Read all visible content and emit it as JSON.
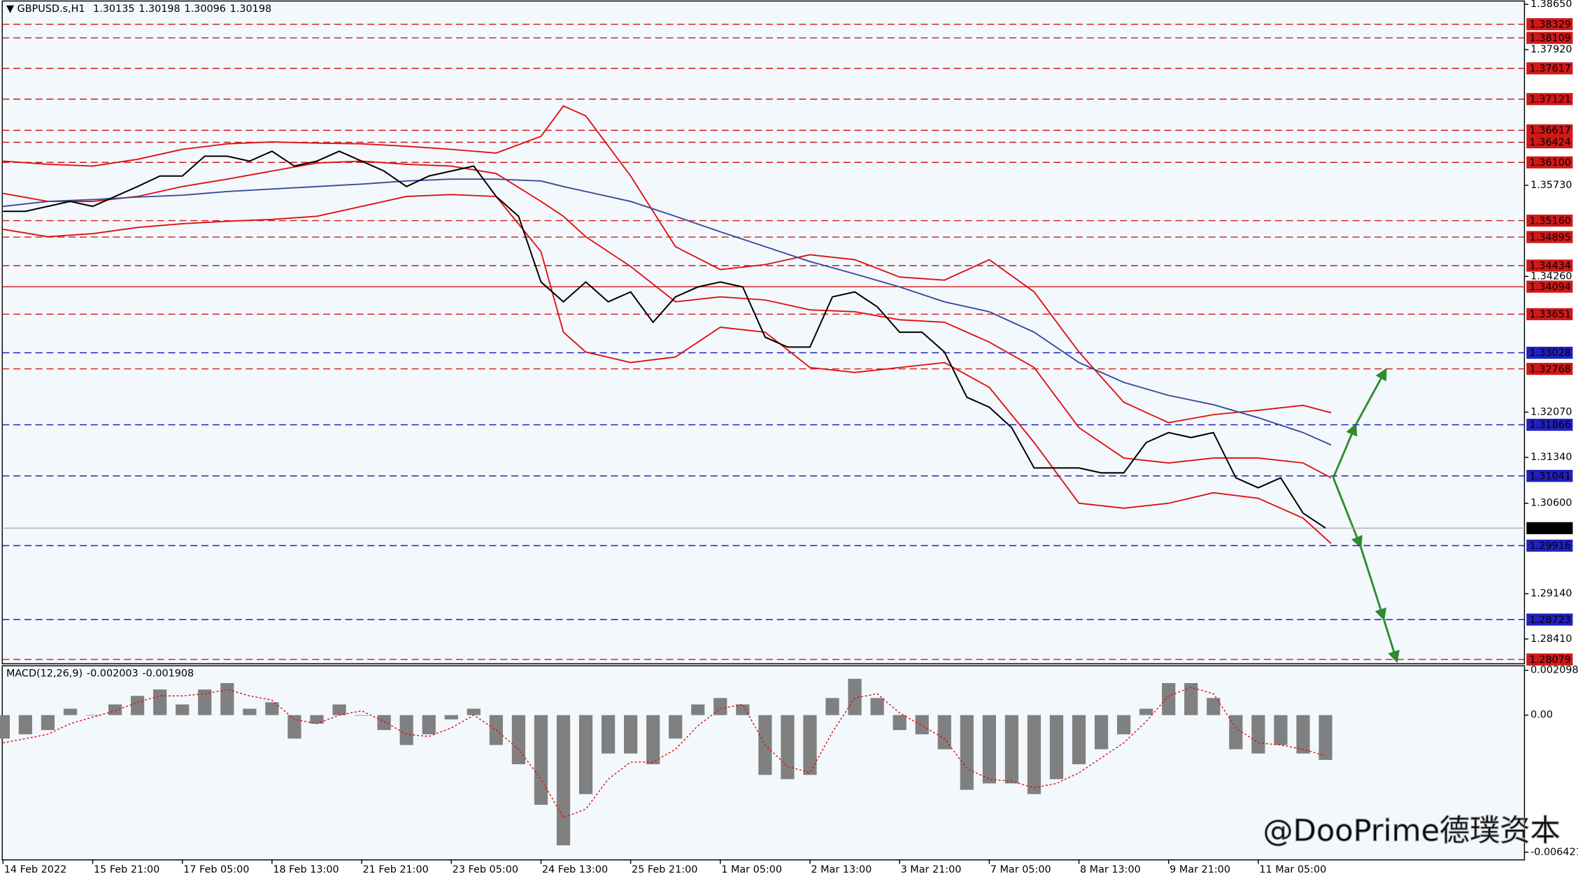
{
  "chart_data": {
    "type": "line",
    "title": "GBPUSD.s,H1",
    "quote": [
      1.30135,
      1.30198,
      1.30096,
      1.30198
    ],
    "xlim": [
      -1,
      543
    ],
    "xticks": [
      {
        "value": 0,
        "label": "14 Feb 2022"
      },
      {
        "value": 32,
        "label": "15 Feb 21:00"
      },
      {
        "value": 64,
        "label": "17 Feb 05:00"
      },
      {
        "value": 96,
        "label": "18 Feb 13:00"
      },
      {
        "value": 128,
        "label": "21 Feb 21:00"
      },
      {
        "value": 160,
        "label": "23 Feb 05:00"
      },
      {
        "value": 192,
        "label": "24 Feb 13:00"
      },
      {
        "value": 224,
        "label": "25 Feb 21:00"
      },
      {
        "value": 256,
        "label": "1 Mar 05:00"
      },
      {
        "value": 288,
        "label": "2 Mar 13:00"
      },
      {
        "value": 320,
        "label": "3 Mar 21:00"
      },
      {
        "value": 352,
        "label": "7 Mar 05:00"
      },
      {
        "value": 384,
        "label": "8 Mar 13:00"
      },
      {
        "value": 416,
        "label": "9 Mar 21:00"
      },
      {
        "value": 448,
        "label": "11 Mar 05:00"
      }
    ],
    "ylim": [
      1.2801,
      1.3872
    ],
    "yticks": [
      {
        "value": 1.3865,
        "label": "1.38650"
      },
      {
        "value": 1.3792,
        "label": "1.37920"
      },
      {
        "value": 1.3573,
        "label": "1.35730"
      },
      {
        "value": 1.3426,
        "label": "1.34260"
      },
      {
        "value": 1.3207,
        "label": "1.32070"
      },
      {
        "value": 1.3134,
        "label": "1.31340"
      },
      {
        "value": 1.306,
        "label": "1.30600"
      },
      {
        "value": 1.2914,
        "label": "1.29140"
      },
      {
        "value": 1.2841,
        "label": "1.28410"
      }
    ],
    "x": [
      0,
      8,
      16,
      24,
      32,
      40,
      48,
      56,
      64,
      72,
      80,
      88,
      96,
      104,
      112,
      120,
      128,
      136,
      144,
      152,
      160,
      168,
      176,
      184,
      192,
      200,
      208,
      216,
      224,
      232,
      240,
      248,
      256,
      264,
      272,
      280,
      288,
      296,
      304,
      312,
      320,
      328,
      336,
      344,
      352,
      360,
      368,
      376,
      384,
      392,
      400,
      408,
      416,
      424,
      432,
      440,
      448,
      456,
      464,
      472
    ],
    "color": "#000000",
    "values": [
      1.3531,
      1.3531,
      1.3539,
      1.3547,
      1.3539,
      1.3555,
      1.3571,
      1.3588,
      1.3588,
      1.362,
      1.362,
      1.3612,
      1.3628,
      1.3604,
      1.3612,
      1.3628,
      1.3612,
      1.3596,
      1.3571,
      1.3588,
      1.3596,
      1.3604,
      1.3555,
      1.3523,
      1.3417,
      1.3385,
      1.3417,
      1.3385,
      1.3401,
      1.3352,
      1.3393,
      1.3409,
      1.3417,
      1.3409,
      1.3328,
      1.3312,
      1.3312,
      1.3393,
      1.3401,
      1.3377,
      1.3336,
      1.3336,
      1.3304,
      1.3231,
      1.3215,
      1.3182,
      1.3117,
      1.3117,
      1.3117,
      1.3109,
      1.3109,
      1.3158,
      1.3174,
      1.3166,
      1.3174,
      1.3101,
      1.3085,
      1.3101,
      1.3044,
      1.302
    ],
    "bands_x": [
      0,
      16,
      32,
      48,
      64,
      80,
      96,
      112,
      128,
      144,
      160,
      176,
      192,
      200,
      208,
      224,
      240,
      256,
      272,
      288,
      304,
      320,
      336,
      352,
      368,
      384,
      400,
      416,
      432,
      448,
      464,
      474
    ],
    "bands": [
      {
        "color": "#e01010",
        "values": [
          1.3612,
          1.3607,
          1.3604,
          1.3615,
          1.3631,
          1.364,
          1.3643,
          1.3641,
          1.364,
          1.3636,
          1.3631,
          1.3625,
          1.3652,
          1.3701,
          1.3685,
          1.3588,
          1.3474,
          1.3437,
          1.3445,
          1.3461,
          1.3453,
          1.3425,
          1.342,
          1.3453,
          1.3401,
          1.3304,
          1.3223,
          1.319,
          1.3203,
          1.321,
          1.3218,
          1.3206
        ]
      },
      {
        "color": "#e01010",
        "values": [
          1.356,
          1.3547,
          1.3547,
          1.3555,
          1.3571,
          1.3583,
          1.3596,
          1.3609,
          1.3612,
          1.3607,
          1.3604,
          1.3592,
          1.3547,
          1.3523,
          1.349,
          1.3442,
          1.3385,
          1.3393,
          1.3388,
          1.3372,
          1.3369,
          1.3356,
          1.3352,
          1.332,
          1.3279,
          1.3182,
          1.3133,
          1.3125,
          1.3133,
          1.3133,
          1.3125,
          1.3101
        ]
      },
      {
        "color": "#e01010",
        "values": [
          1.3502,
          1.349,
          1.3495,
          1.3505,
          1.3511,
          1.3515,
          1.3518,
          1.3523,
          1.3539,
          1.3555,
          1.3558,
          1.3555,
          1.3466,
          1.3336,
          1.3304,
          1.3287,
          1.3296,
          1.3344,
          1.3336,
          1.3279,
          1.3271,
          1.3279,
          1.3287,
          1.3247,
          1.3158,
          1.306,
          1.3052,
          1.306,
          1.3077,
          1.3068,
          1.3036,
          1.2995
        ]
      },
      {
        "color": "#3a4a9a",
        "values": [
          1.3539,
          1.3547,
          1.355,
          1.3554,
          1.3557,
          1.3563,
          1.3567,
          1.3571,
          1.3575,
          1.358,
          1.3583,
          1.3583,
          1.358,
          1.3571,
          1.3563,
          1.3547,
          1.3523,
          1.3498,
          1.3474,
          1.345,
          1.343,
          1.3409,
          1.3385,
          1.3369,
          1.3336,
          1.3287,
          1.3255,
          1.3234,
          1.3219,
          1.3198,
          1.3174,
          1.3154
        ]
      }
    ],
    "levels": [
      {
        "value": 1.38329,
        "label": "1.38329",
        "color": "#d01818",
        "dashed": true
      },
      {
        "value": 1.38109,
        "label": "1.38109",
        "color": "#d01818",
        "dashed": true
      },
      {
        "value": 1.37617,
        "label": "1.37617",
        "color": "#d01818",
        "dashed": true
      },
      {
        "value": 1.37121,
        "label": "1.37121",
        "color": "#d01818",
        "dashed": true
      },
      {
        "value": 1.36617,
        "label": "1.36617",
        "color": "#d01818",
        "dashed": true
      },
      {
        "value": 1.36424,
        "label": "1.36424",
        "color": "#d01818",
        "dashed": true
      },
      {
        "value": 1.361,
        "label": "1.36100",
        "color": "#d01818",
        "dashed": true
      },
      {
        "value": 1.3516,
        "label": "1.35160",
        "color": "#d01818",
        "dashed": true
      },
      {
        "value": 1.34895,
        "label": "1.34895",
        "color": "#d01818",
        "dashed": true
      },
      {
        "value": 1.34434,
        "label": "1.34434",
        "color": "#d01818",
        "dashed": true
      },
      {
        "value": 1.34094,
        "label": "1.34094",
        "color": "#d01818",
        "dashed": false
      },
      {
        "value": 1.33651,
        "label": "1.33651",
        "color": "#d01818",
        "dashed": true
      },
      {
        "value": 1.33028,
        "label": "1.33028",
        "color": "#2020c0",
        "dashed": true
      },
      {
        "value": 1.32768,
        "label": "1.32768",
        "color": "#d01818",
        "dashed": true
      },
      {
        "value": 1.31866,
        "label": "1.31866",
        "color": "#2020c0",
        "dashed": true
      },
      {
        "value": 1.31041,
        "label": "1.31041",
        "color": "#2020c0",
        "dashed": true
      },
      {
        "value": 1.30198,
        "label": "1.30198",
        "color": "#000000",
        "dashed": false
      },
      {
        "value": 1.29916,
        "label": "1.29916",
        "color": "#2020c0",
        "dashed": true
      },
      {
        "value": 1.28723,
        "label": "1.28723",
        "color": "#2020c0",
        "dashed": true
      },
      {
        "value": 1.28079,
        "label": "1.28079",
        "color": "#d01818",
        "dashed": true
      }
    ],
    "macd": {
      "title": "MACD(12,26,9)",
      "main": -0.002003,
      "signal": -0.001908,
      "ylim": [
        -0.00678,
        0.00231
      ],
      "yticks": [
        0.002098,
        {
          "value": 0,
          "label": "0.00"
        },
        -0.006421
      ],
      "color": "#808080",
      "signal_color": "#e01010",
      "histogram": [
        -0.0011,
        -0.0009,
        -0.0007,
        0.0003,
        0.0,
        0.0005,
        0.0009,
        0.0012,
        0.0005,
        0.0012,
        0.0015,
        0.0003,
        0.0006,
        -0.0011,
        -0.0004,
        0.0005,
        0.0,
        -0.0007,
        -0.0014,
        -0.0009,
        -0.0002,
        0.0003,
        -0.0014,
        -0.0023,
        -0.0042,
        -0.0061,
        -0.0037,
        -0.0018,
        -0.0018,
        -0.0023,
        -0.0011,
        0.0005,
        0.0008,
        0.0005,
        -0.0028,
        -0.003,
        -0.0028,
        0.0008,
        0.0017,
        0.0008,
        -0.0007,
        -0.0009,
        -0.0016,
        -0.0035,
        -0.0032,
        -0.0032,
        -0.0037,
        -0.003,
        -0.0023,
        -0.0016,
        -0.0009,
        0.0003,
        0.0015,
        0.0015,
        0.0008,
        -0.0016,
        -0.0018,
        -0.0014,
        -0.0018,
        -0.0021
      ],
      "signal_line": [
        -0.0013,
        -0.0011,
        -0.0009,
        -0.0004,
        -0.0001,
        0.0002,
        0.0006,
        0.0009,
        0.0009,
        0.001,
        0.0012,
        0.0009,
        0.0007,
        -0.0002,
        -0.0004,
        0.0,
        0.0002,
        -0.0003,
        -0.0009,
        -0.001,
        -0.0006,
        0.0,
        -0.0007,
        -0.0016,
        -0.003,
        -0.0048,
        -0.0044,
        -0.003,
        -0.0022,
        -0.0022,
        -0.0016,
        -0.0005,
        0.0003,
        0.0005,
        -0.0014,
        -0.0024,
        -0.0027,
        -0.0008,
        0.0008,
        0.001,
        0.0001,
        -0.0005,
        -0.0011,
        -0.0025,
        -0.003,
        -0.0031,
        -0.0034,
        -0.0032,
        -0.0027,
        -0.002,
        -0.0013,
        -0.0003,
        0.0009,
        0.0013,
        0.001,
        -0.0006,
        -0.0013,
        -0.0014,
        -0.0016,
        -0.0019
      ]
    },
    "watermark": "@DooPrime德璞资本"
  }
}
